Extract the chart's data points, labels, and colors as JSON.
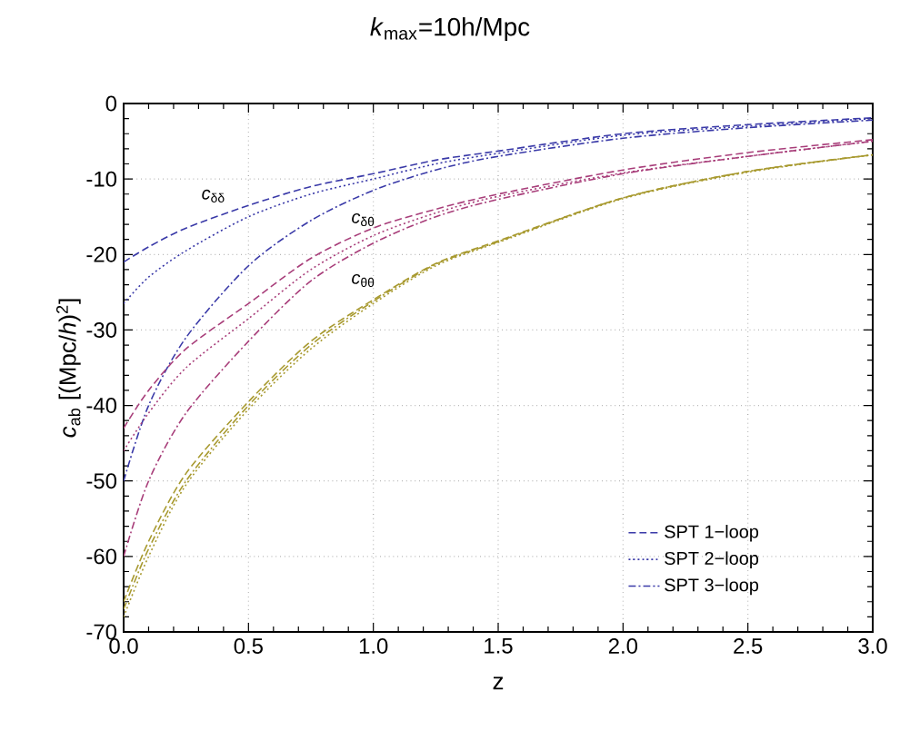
{
  "chart_data": {
    "type": "line",
    "title": "*k*$_{max}$=10h/Mpc",
    "xlabel": "z",
    "ylabel": "*c*$_{ab}$ [(Mpc/*h*)$^{2}$]",
    "x": [
      0,
      0.1,
      0.25,
      0.5,
      0.75,
      1,
      1.25,
      1.5,
      2,
      2.5,
      3
    ],
    "series": [
      {
        "name": "SPT 1−loop",
        "color": "#3a3aa8",
        "line_style": "dashed",
        "values": [
          -21,
          -19,
          -16.5,
          -13.5,
          -11,
          -9.3,
          -7.5,
          -6.3,
          -4,
          -2.8,
          -1.9
        ]
      },
      {
        "name": "SPT 2−loop",
        "color": "#3a3aa8",
        "line_style": "dotted",
        "values": [
          -26.5,
          -23,
          -19.5,
          -15,
          -12,
          -10,
          -8,
          -6.6,
          -4.2,
          -3,
          -2
        ]
      },
      {
        "name": "SPT 3−loop",
        "color": "#3a3aa8",
        "line_style": "dashdot",
        "values": [
          -50,
          -40,
          -31,
          -21.5,
          -15.5,
          -11.5,
          -8.8,
          -7,
          -4.6,
          -3.2,
          -2.2
        ]
      },
      {
        "color": "#a83e7a",
        "line_style": "dashed",
        "values": [
          -43,
          -38,
          -32.5,
          -26.5,
          -20.5,
          -16.5,
          -14,
          -12,
          -8.8,
          -6.5,
          -4.8
        ]
      },
      {
        "color": "#a83e7a",
        "line_style": "dotted",
        "values": [
          -46,
          -41,
          -35,
          -28.5,
          -22,
          -17.5,
          -14.5,
          -12.3,
          -9.2,
          -7,
          -5
        ]
      },
      {
        "color": "#a83e7a",
        "line_style": "dashdot",
        "values": [
          -60,
          -50,
          -41,
          -31.5,
          -23.5,
          -18.5,
          -15,
          -12.7,
          -9.3,
          -7,
          -5
        ]
      },
      {
        "color": "#a89a30",
        "line_style": "dashed",
        "values": [
          -66,
          -58,
          -49,
          -39.5,
          -31.5,
          -26,
          -21.2,
          -18.2,
          -12.5,
          -9,
          -6.8
        ]
      },
      {
        "color": "#a89a30",
        "line_style": "dotted",
        "values": [
          -68,
          -60,
          -50.5,
          -40.5,
          -32.5,
          -26.5,
          -21.5,
          -18.4,
          -12.6,
          -9.1,
          -6.8
        ]
      },
      {
        "color": "#a89a30",
        "line_style": "dashdot",
        "values": [
          -67,
          -59,
          -50,
          -40,
          -32,
          -26.2,
          -21.3,
          -18.3,
          -12.5,
          -9,
          -6.8
        ]
      }
    ],
    "xlim": [
      0,
      3
    ],
    "ylim": [
      -70,
      0
    ],
    "xticks": [
      {
        "value": 0,
        "label": "0.0"
      },
      {
        "value": 0.5,
        "label": "0.5"
      },
      {
        "value": 1,
        "label": "1.0"
      },
      {
        "value": 1.5,
        "label": "1.5"
      },
      {
        "value": 2,
        "label": "2.0"
      },
      {
        "value": 2.5,
        "label": "2.5"
      },
      {
        "value": 3,
        "label": "3.0"
      }
    ],
    "yticks": [
      -70,
      -60,
      -50,
      -40,
      -30,
      -20,
      -10,
      0
    ],
    "grid": true,
    "legend": "bottom right",
    "annotations": [
      "*c*$_{δδ}$",
      "*c*$_{δθ}$",
      "*c*$_{θθ}$"
    ]
  }
}
